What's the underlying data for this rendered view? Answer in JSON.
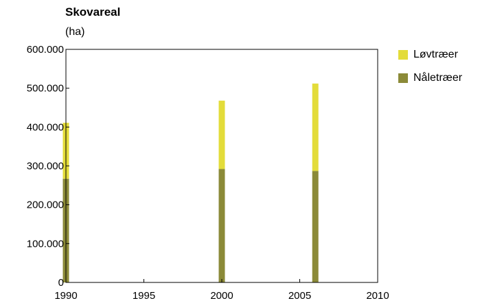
{
  "chart_data": {
    "type": "bar",
    "stacked": true,
    "title": "Skovareal",
    "ylabel": "(ha)",
    "xlabel": "",
    "x": [
      1990,
      2000,
      2006
    ],
    "xlim": [
      1990,
      2010
    ],
    "xticks": [
      1990,
      1995,
      2000,
      2005,
      2010
    ],
    "xtick_labels": [
      "1990",
      "1995",
      "2000",
      "2005",
      "2010"
    ],
    "ylim": [
      0,
      600000
    ],
    "yticks": [
      0,
      100000,
      200000,
      300000,
      400000,
      500000,
      600000
    ],
    "ytick_labels": [
      "0",
      "100.000",
      "200.000",
      "300.000",
      "400.000",
      "500.000",
      "600.000"
    ],
    "grid": false,
    "legend_position": "right",
    "series": [
      {
        "name": "Nåletræer",
        "color": "#8b8a38",
        "values": [
          267000,
          292000,
          287000
        ]
      },
      {
        "name": "Løvtræer",
        "color": "#e3dc3a",
        "values": [
          144000,
          176000,
          225000
        ]
      }
    ]
  },
  "legend": [
    {
      "label": "Løvtræer",
      "color": "#e3dc3a"
    },
    {
      "label": "Nåletræer",
      "color": "#8b8a38"
    }
  ]
}
